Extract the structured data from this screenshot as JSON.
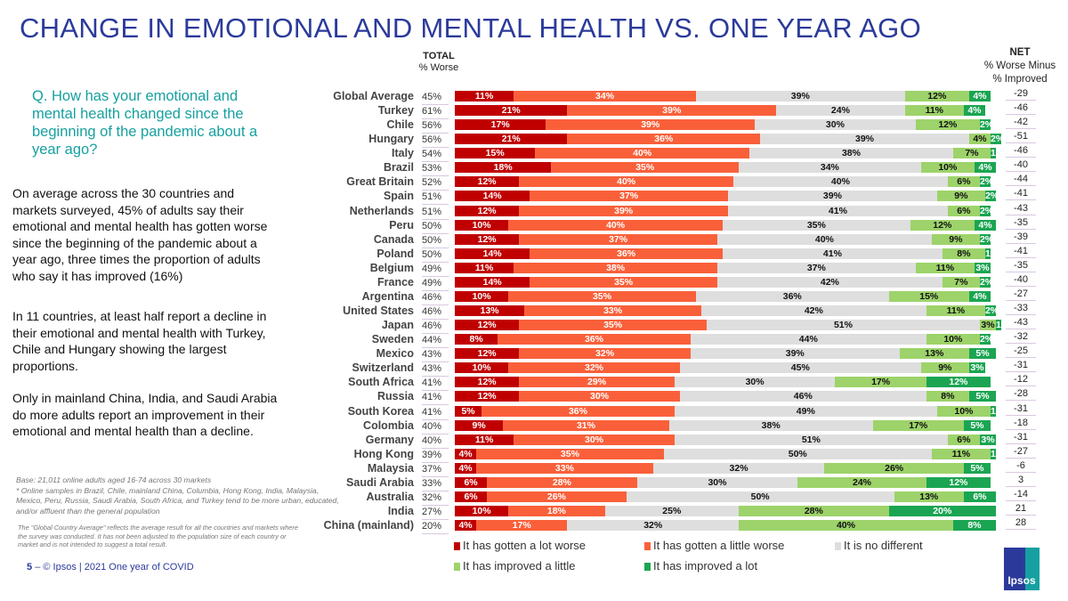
{
  "title": "CHANGE IN EMOTIONAL AND MENTAL HEALTH VS. ONE YEAR AGO",
  "question": "Q. How has your emotional and mental health changed since the beginning of the pandemic about a year ago?",
  "paragraphs": [
    "On average across the 30 countries and markets surveyed, 45% of adults say their emotional and mental health has gotten worse since the beginning of the pandemic about a year ago, three times the proportion of adults who say it has improved (16%)",
    "In 11 countries, at least half report a decline in their emotional and mental health with Turkey, Chile and Hungary showing the largest proportions.",
    "Only in mainland China, India, and Saudi Arabia do more adults report an improvement in their emotional and mental health than a decline."
  ],
  "base": "Base: 21,011 online adults aged 16-74 across 30 markets",
  "base_note": "* Online samples in Brazil, Chile, mainland China, Columbia, Hong Kong, India, Malaysia, Mexico, Peru, Russia, Saudi Arabia, South Africa, and Turkey tend to be more urban, educated, and/or affluent than the general population",
  "global_note": "The \"Global Country Average\" reflects the average result for all the countries and markets where the survey was conducted. It has not been adjusted to the population size of each country or market and is not intended to suggest a total result.",
  "footer": {
    "page": "5",
    "text": "– © Ipsos | 2021 One year of COVID"
  },
  "logo": "Ipsos",
  "chart_data": {
    "type": "bar",
    "stacked": true,
    "orientation": "horizontal",
    "title": "CHANGE IN EMOTIONAL AND MENTAL HEALTH VS. ONE YEAR AGO",
    "total_header": {
      "title": "TOTAL",
      "sub": "% Worse"
    },
    "net_header": {
      "title": "NET",
      "sub1": "% Worse Minus",
      "sub2": "% Improved"
    },
    "xlim": [
      0,
      100
    ],
    "legend_position": "bottom",
    "categories": [
      "Global Average",
      "Turkey",
      "Chile",
      "Hungary",
      "Italy",
      "Brazil",
      "Great Britain",
      "Spain",
      "Netherlands",
      "Peru",
      "Canada",
      "Poland",
      "Belgium",
      "France",
      "Argentina",
      "United States",
      "Japan",
      "Sweden",
      "Mexico",
      "Switzerland",
      "South Africa",
      "Russia",
      "South Korea",
      "Colombia",
      "Germany",
      "Hong Kong",
      "Malaysia",
      "Saudi Arabia",
      "Australia",
      "India",
      "China (mainland)"
    ],
    "total_worse": [
      45,
      61,
      56,
      56,
      54,
      53,
      52,
      51,
      51,
      50,
      50,
      50,
      49,
      49,
      46,
      46,
      46,
      44,
      43,
      43,
      41,
      41,
      41,
      40,
      40,
      39,
      37,
      33,
      32,
      27,
      20
    ],
    "net": [
      -29,
      -46,
      -42,
      -51,
      -46,
      -40,
      -44,
      -41,
      -43,
      -35,
      -39,
      -41,
      -35,
      -40,
      -27,
      -33,
      -43,
      -32,
      -25,
      -31,
      -12,
      -28,
      -31,
      -18,
      -31,
      -27,
      -6,
      3,
      -14,
      21,
      28
    ],
    "series": [
      {
        "name": "It has gotten a lot worse",
        "color": "#c00000",
        "text": "#fff",
        "values": [
          11,
          21,
          17,
          21,
          15,
          18,
          12,
          14,
          12,
          10,
          12,
          14,
          11,
          14,
          10,
          13,
          12,
          8,
          12,
          10,
          12,
          12,
          5,
          9,
          11,
          4,
          4,
          6,
          6,
          10,
          4
        ]
      },
      {
        "name": "It has gotten a little worse",
        "color": "#f9603a",
        "text": "#fff",
        "values": [
          34,
          39,
          39,
          36,
          40,
          35,
          40,
          37,
          39,
          40,
          37,
          36,
          38,
          35,
          35,
          33,
          35,
          36,
          32,
          32,
          29,
          30,
          36,
          31,
          30,
          35,
          33,
          28,
          26,
          18,
          17
        ]
      },
      {
        "name": "It is no different",
        "color": "#dedede",
        "text": "#111",
        "values": [
          39,
          24,
          30,
          39,
          38,
          34,
          40,
          39,
          41,
          35,
          40,
          41,
          37,
          42,
          36,
          42,
          51,
          44,
          39,
          45,
          30,
          46,
          49,
          38,
          51,
          50,
          32,
          30,
          50,
          25,
          32
        ]
      },
      {
        "name": "It has improved a little",
        "color": "#9dd36a",
        "text": "#111",
        "values": [
          12,
          11,
          12,
          4,
          7,
          10,
          6,
          9,
          6,
          12,
          9,
          8,
          11,
          7,
          15,
          11,
          3,
          10,
          13,
          9,
          17,
          8,
          10,
          17,
          6,
          11,
          26,
          24,
          13,
          28,
          40
        ]
      },
      {
        "name": "It has improved a lot",
        "color": "#1ba552",
        "text": "#fff",
        "values": [
          4,
          4,
          2,
          2,
          1,
          4,
          2,
          2,
          2,
          4,
          2,
          1,
          3,
          2,
          4,
          2,
          1,
          2,
          5,
          3,
          12,
          5,
          1,
          5,
          3,
          1,
          5,
          12,
          6,
          20,
          8
        ]
      }
    ]
  }
}
